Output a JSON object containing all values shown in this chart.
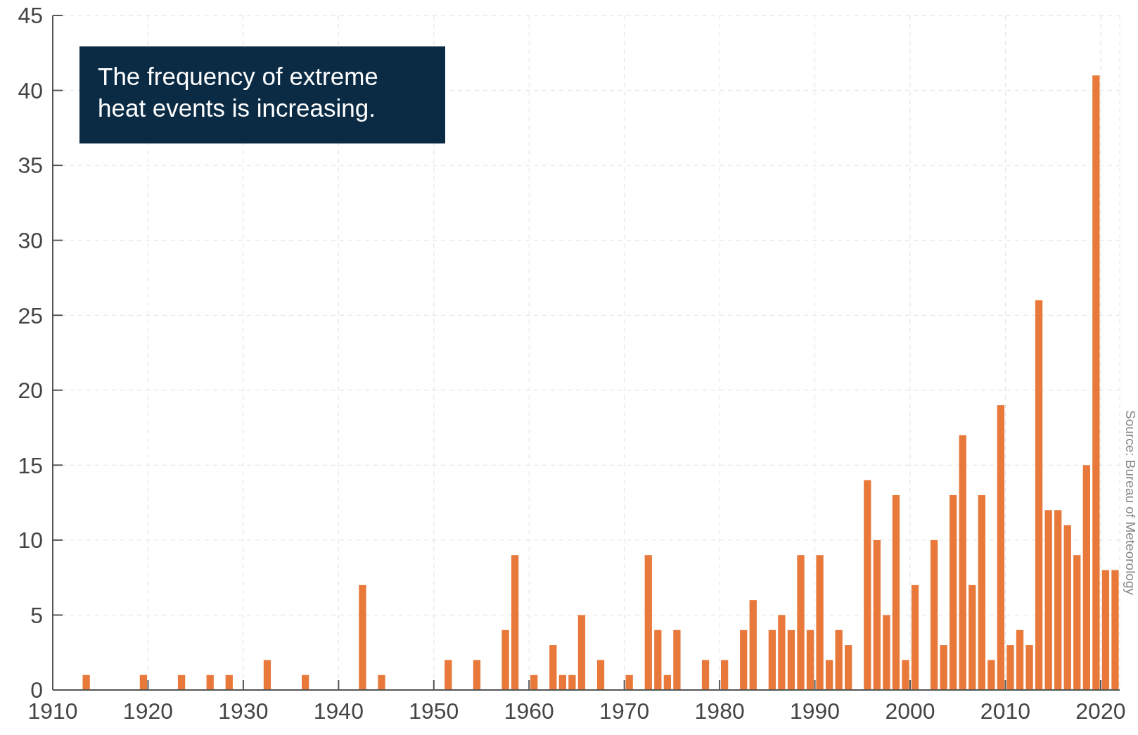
{
  "chart_data": {
    "type": "bar",
    "x": [
      1913,
      1919,
      1923,
      1926,
      1928,
      1932,
      1936,
      1942,
      1944,
      1951,
      1954,
      1957,
      1958,
      1960,
      1962,
      1963,
      1964,
      1965,
      1967,
      1970,
      1972,
      1973,
      1974,
      1975,
      1978,
      1980,
      1982,
      1983,
      1985,
      1986,
      1987,
      1988,
      1989,
      1990,
      1991,
      1992,
      1993,
      1995,
      1996,
      1997,
      1998,
      1999,
      2000,
      2002,
      2003,
      2004,
      2005,
      2006,
      2007,
      2008,
      2009,
      2010,
      2011,
      2012,
      2013,
      2014,
      2015,
      2016,
      2017,
      2018,
      2019,
      2020,
      2021
    ],
    "values": [
      1,
      1,
      1,
      1,
      1,
      2,
      1,
      7,
      1,
      2,
      2,
      4,
      9,
      1,
      3,
      1,
      1,
      5,
      2,
      1,
      9,
      4,
      1,
      4,
      2,
      2,
      4,
      6,
      4,
      5,
      4,
      9,
      4,
      9,
      2,
      4,
      3,
      14,
      10,
      5,
      13,
      2,
      7,
      10,
      3,
      13,
      17,
      7,
      13,
      2,
      19,
      3,
      4,
      3,
      26,
      12,
      12,
      11,
      9,
      15,
      41,
      8,
      8
    ],
    "color": "#e8793a",
    "xlim": [
      1910,
      2022
    ],
    "xticks": [
      1910,
      1920,
      1930,
      1940,
      1950,
      1960,
      1970,
      1980,
      1990,
      2000,
      2010,
      2020
    ],
    "ylim": [
      0,
      45
    ],
    "yticks": [
      0,
      5,
      10,
      15,
      20,
      25,
      30,
      35,
      40,
      45
    ],
    "grid": true,
    "annotations": [
      "The frequency of extreme heat events is increasing.",
      "Source: Bureau of Meteorology"
    ]
  }
}
